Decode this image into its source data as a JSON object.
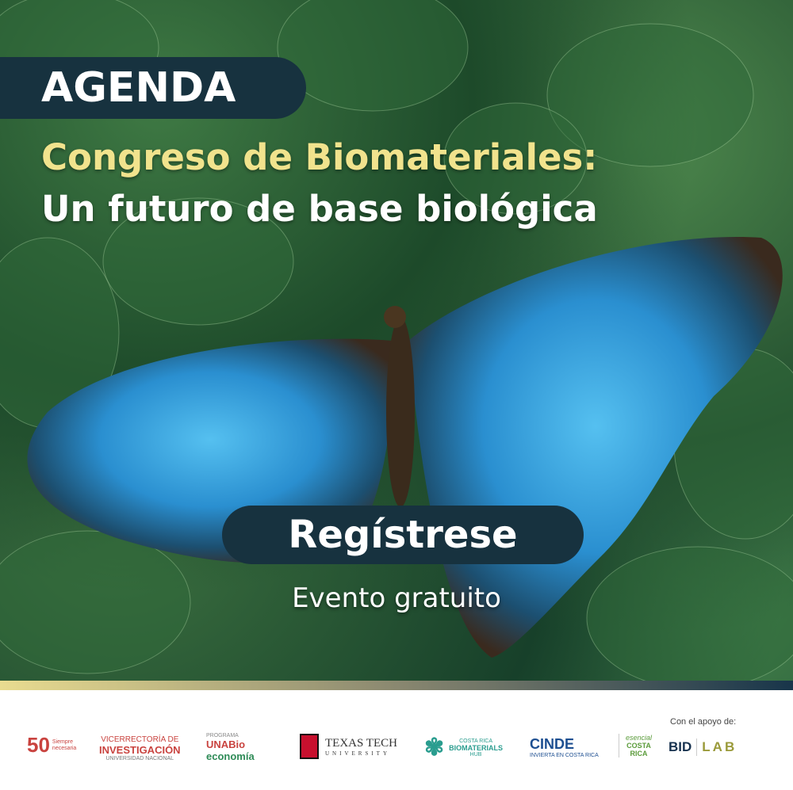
{
  "header": {
    "badge": "AGENDA",
    "title_line1": "Congreso de Biomateriales:",
    "title_line2": "Un futuro de base biológica"
  },
  "cta": {
    "register_label": "Regístrese",
    "subtitle": "Evento gratuito"
  },
  "colors": {
    "navy": "#17323f",
    "title_yellow": "#f1e38d",
    "wing_blue": "#2a8fd0"
  },
  "footer": {
    "support_label": "Con el apoyo de:",
    "logos": [
      {
        "name": "50 años UNA",
        "text": "50",
        "sub": "Siempre necesaria"
      },
      {
        "name": "Vicerrectoría de Investigación",
        "line1": "VICERRECTORÍA DE",
        "line2": "INVESTIGACIÓN",
        "line3": "UNIVERSIDAD NACIONAL"
      },
      {
        "name": "UNA Bioeconomía",
        "line1": "PROGRAMA",
        "line2": "UNABio",
        "line3": "economía"
      },
      {
        "name": "Texas Tech University",
        "line1": "TEXAS TECH",
        "line2": "UNIVERSITY"
      },
      {
        "name": "Costa Rica Biomaterials Hub",
        "line1": "COSTA RICA",
        "line2": "BIOMATERIALS",
        "line3": "HUB"
      },
      {
        "name": "CINDE",
        "line1": "CINDE",
        "line2": "INVIERTA EN COSTA RICA"
      },
      {
        "name": "Esencial Costa Rica",
        "line1": "esencial",
        "line2": "COSTA",
        "line3": "RICA"
      },
      {
        "name": "BID Lab",
        "line1": "BID",
        "line2": "LAB"
      }
    ]
  }
}
